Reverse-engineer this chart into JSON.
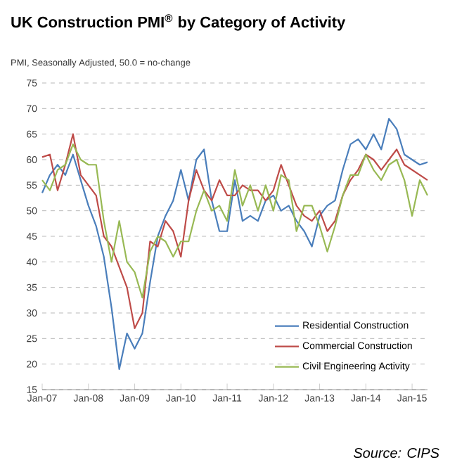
{
  "chart_data": {
    "type": "line",
    "title": "UK Construction PMI$^{®}$ by Category of Activity",
    "subtitle": "PMI, Seasonally Adjusted, 50.0 = no-change",
    "annotations": [
      "Source: CIPS"
    ],
    "x": [
      "2007-01",
      "2007-03",
      "2007-05",
      "2007-07",
      "2007-09",
      "2007-11",
      "2008-01",
      "2008-03",
      "2008-05",
      "2008-07",
      "2008-09",
      "2008-11",
      "2009-01",
      "2009-03",
      "2009-05",
      "2009-07",
      "2009-09",
      "2009-11",
      "2010-01",
      "2010-03",
      "2010-05",
      "2010-07",
      "2010-09",
      "2010-11",
      "2011-01",
      "2011-03",
      "2011-05",
      "2011-07",
      "2011-09",
      "2011-11",
      "2012-01",
      "2012-03",
      "2012-05",
      "2012-07",
      "2012-09",
      "2012-11",
      "2013-01",
      "2013-03",
      "2013-05",
      "2013-07",
      "2013-09",
      "2013-11",
      "2014-01",
      "2014-03",
      "2014-05",
      "2014-07",
      "2014-09",
      "2014-11",
      "2015-01",
      "2015-03",
      "2015-05"
    ],
    "series": [
      {
        "name": "Residential Construction",
        "color": "#4a7ebb",
        "values": [
          53.5,
          57,
          59,
          57,
          61,
          56,
          51,
          47,
          41,
          31,
          19,
          26,
          23,
          26,
          36,
          45,
          49,
          52,
          58,
          52,
          60,
          62,
          52,
          46,
          46,
          56,
          48,
          49,
          48,
          52,
          53,
          50,
          51,
          48,
          46,
          43,
          49,
          51,
          52,
          58,
          63,
          64,
          62,
          65,
          62,
          68,
          66,
          61,
          60,
          59,
          59.5
        ]
      },
      {
        "name": "Commercial Construction",
        "color": "#be4b48",
        "values": [
          60.5,
          61,
          54,
          59,
          65,
          57,
          55,
          53,
          45,
          43,
          39,
          35,
          27,
          30,
          44,
          43,
          48,
          46,
          41,
          52,
          58,
          54,
          52,
          56,
          53,
          53,
          55,
          54,
          54,
          52,
          54,
          59,
          55,
          51,
          49,
          48,
          50,
          46,
          48,
          53,
          56,
          58,
          61,
          60,
          58,
          60,
          62,
          59,
          58,
          57,
          56
        ]
      },
      {
        "name": "Civil Engineering Activity",
        "color": "#98b954",
        "values": [
          56,
          54,
          58,
          59,
          63,
          60,
          59,
          59,
          48,
          40,
          48,
          40,
          38,
          33,
          42,
          45,
          44,
          41,
          44,
          44,
          50,
          54,
          50,
          51,
          48,
          58,
          51,
          55,
          50,
          55,
          50,
          57,
          56,
          46,
          51,
          51,
          47,
          42,
          47,
          53,
          57,
          57,
          61,
          58,
          56,
          59,
          60,
          56,
          49,
          56,
          53
        ]
      }
    ],
    "xlim": [
      "2007-01",
      "2015-05"
    ],
    "xticks": [
      {
        "value": "2007-01",
        "label": "Jan-07"
      },
      {
        "value": "2008-01",
        "label": "Jan-08"
      },
      {
        "value": "2009-01",
        "label": "Jan-09"
      },
      {
        "value": "2010-01",
        "label": "Jan-10"
      },
      {
        "value": "2011-01",
        "label": "Jan-11"
      },
      {
        "value": "2012-01",
        "label": "Jan-12"
      },
      {
        "value": "2013-01",
        "label": "Jan-13"
      },
      {
        "value": "2014-01",
        "label": "Jan-14"
      },
      {
        "value": "2015-01",
        "label": "Jan-15"
      }
    ],
    "ylim": [
      15,
      75
    ],
    "yticks": [
      15,
      20,
      25,
      30,
      35,
      40,
      45,
      50,
      55,
      60,
      65,
      70,
      75
    ],
    "grid": "y",
    "legend": "bottom right"
  }
}
